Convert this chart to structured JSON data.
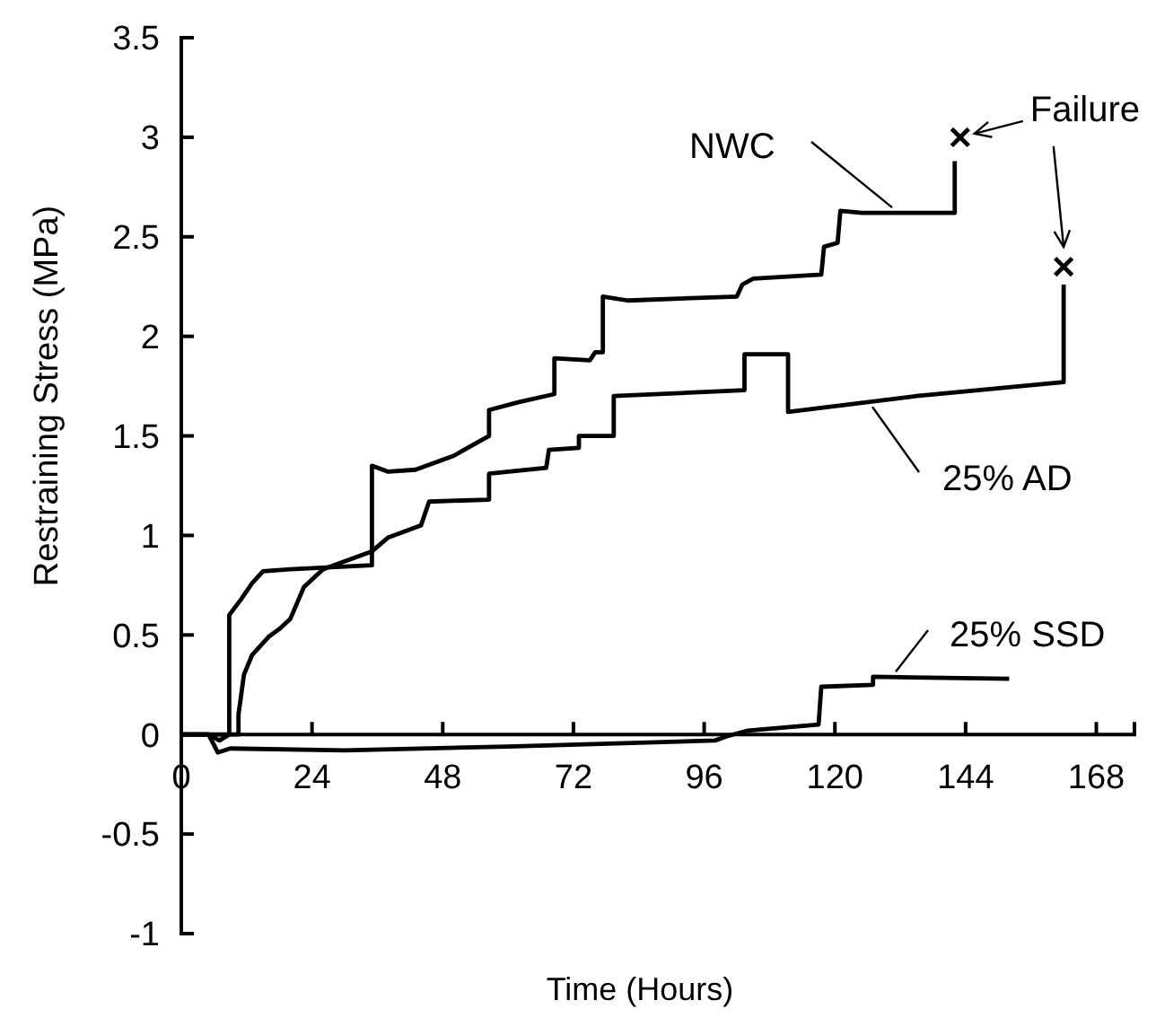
{
  "chart_data": {
    "type": "line",
    "xlabel": "Time (Hours)",
    "ylabel": "Restraining Stress (MPa)",
    "xlim": [
      0,
      175
    ],
    "ylim": [
      -1,
      3.5
    ],
    "xticks": [
      0,
      24,
      48,
      72,
      96,
      120,
      144,
      168
    ],
    "yticks": [
      -1,
      -0.5,
      0,
      0.5,
      1,
      1.5,
      2,
      2.5,
      3,
      3.5
    ],
    "grid": false,
    "line_style": "solid",
    "series": [
      {
        "name": "NWC",
        "color": "#000000",
        "x": [
          0,
          5,
          7,
          8.8,
          8.8,
          11,
          13,
          15,
          20,
          35,
          35,
          38,
          43,
          50,
          56.5,
          56.5,
          62,
          68.5,
          68.5,
          75,
          76,
          77.4,
          77.4,
          82,
          102,
          103,
          105,
          117.5,
          118,
          120.5,
          121,
          125,
          142,
          142
        ],
        "values": [
          0,
          0,
          -0.03,
          0,
          0.6,
          0.68,
          0.76,
          0.82,
          0.83,
          0.85,
          1.35,
          1.32,
          1.33,
          1.4,
          1.5,
          1.63,
          1.67,
          1.71,
          1.89,
          1.88,
          1.92,
          1.92,
          2.2,
          2.18,
          2.2,
          2.26,
          2.29,
          2.31,
          2.45,
          2.47,
          2.63,
          2.62,
          2.62,
          2.88
        ]
      },
      {
        "name": "25% AD",
        "color": "#000000",
        "x": [
          0,
          10.5,
          10.5,
          11.5,
          13,
          16,
          18,
          20,
          22.5,
          26,
          30,
          35,
          38,
          44,
          45.5,
          56.5,
          56.5,
          67,
          67.5,
          73,
          73,
          79.4,
          79.4,
          103.4,
          103.4,
          111.4,
          111.4,
          135,
          162,
          162
        ],
        "values": [
          0,
          0,
          0.1,
          0.3,
          0.4,
          0.49,
          0.53,
          0.58,
          0.74,
          0.83,
          0.87,
          0.92,
          0.99,
          1.05,
          1.17,
          1.18,
          1.31,
          1.34,
          1.43,
          1.44,
          1.5,
          1.5,
          1.7,
          1.73,
          1.91,
          1.91,
          1.62,
          1.7,
          1.77,
          2.26
        ]
      },
      {
        "name": "25% SSD",
        "color": "#000000",
        "x": [
          0,
          5,
          6.7,
          9,
          30,
          60,
          98,
          100,
          104,
          117,
          117.5,
          127,
          127,
          152
        ],
        "values": [
          0,
          0,
          -0.09,
          -0.07,
          -0.08,
          -0.06,
          -0.03,
          -0.01,
          0.02,
          0.05,
          0.24,
          0.25,
          0.29,
          0.28
        ]
      },
      {
        "type": "scatter",
        "marker": "cross",
        "color": "#000000",
        "x": [
          143,
          162
        ],
        "values": [
          3.0,
          2.35
        ]
      }
    ],
    "annotations": [
      {
        "text": "Failure",
        "x": 143,
        "y": 3.0
      }
    ]
  }
}
